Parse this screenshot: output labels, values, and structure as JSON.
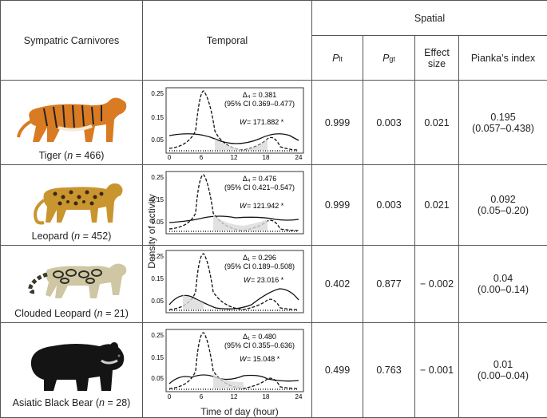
{
  "header": {
    "col_species": "Sympatric Carnivores",
    "col_temporal": "Temporal",
    "col_spatial": "Spatial",
    "plt_main": "P",
    "plt_sub": "lt",
    "pgt_main": "P",
    "pgt_sub": "gt",
    "effect_size": "Effect size",
    "pianka": "Pianka’s index"
  },
  "axis": {
    "y_label": "Density of activity",
    "x_label": "Time of day (hour)",
    "x_ticks": [
      "0",
      "6",
      "12",
      "18",
      "24"
    ],
    "y_ticks": [
      "0.25",
      "0.15",
      "0.05"
    ]
  },
  "rows": [
    {
      "species_pre": "Tiger (",
      "n_label": "n",
      "n_value": " = 466)",
      "delta_text": "Δ₄ = 0.381",
      "ci_text": "(95% CI 0.369–0.477)",
      "w_label": "W",
      "w_value": " = 171.882 *",
      "p_lt": "0.999",
      "p_gt": "0.003",
      "effect": "0.021",
      "pianka_value": "0.195",
      "pianka_ci": "(0.057–0.438)"
    },
    {
      "species_pre": "Leopard (",
      "n_label": "n",
      "n_value": " = 452)",
      "delta_text": "Δ₄ = 0.476",
      "ci_text": "(95% CI 0.421–0.547)",
      "w_label": "W",
      "w_value": " = 121.942 *",
      "p_lt": "0.999",
      "p_gt": "0.003",
      "effect": "0.021",
      "pianka_value": "0.092",
      "pianka_ci": "(0.05–0.20)"
    },
    {
      "species_pre": "Clouded Leopard (",
      "n_label": "n",
      "n_value": " = 21)",
      "delta_text": "Δ₁ = 0.296",
      "ci_text": "(95% CI 0.189–0.508)",
      "w_label": "W",
      "w_value": " = 23.016 *",
      "p_lt": "0.402",
      "p_gt": "0.877",
      "effect": "− 0.002",
      "pianka_value": "0.04",
      "pianka_ci": "(0.00–0.14)"
    },
    {
      "species_pre": "Asiatic Black Bear (",
      "n_label": "n",
      "n_value": " = 28)",
      "delta_text": "Δ₁ = 0.480",
      "ci_text": "(95% CI 0.355–0.636)",
      "w_label": "W",
      "w_value": " = 15.048 *",
      "p_lt": "0.499",
      "p_gt": "0.763",
      "effect": "− 0.001",
      "pianka_value": "0.01",
      "pianka_ci": "(0.00–0.04)"
    }
  ]
}
